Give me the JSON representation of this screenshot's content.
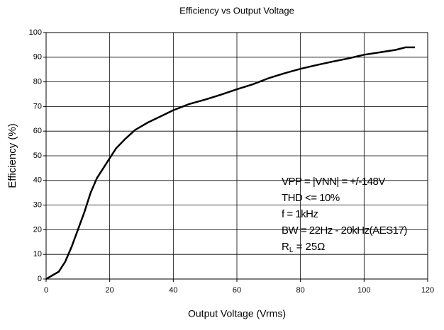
{
  "chart_data": {
    "type": "line",
    "title": "Efficiency vs Output Voltage",
    "x_label": "Output Voltage (Vrms)",
    "y_label": "Efficiency (%)",
    "x": [
      0,
      4,
      6,
      8,
      10,
      12,
      14,
      16,
      18,
      20,
      22,
      25,
      28,
      32,
      36,
      40,
      45,
      50,
      55,
      60,
      65,
      70,
      75,
      80,
      85,
      90,
      95,
      100,
      105,
      110,
      113,
      116
    ],
    "series": [
      {
        "name": "Efficiency",
        "color": "#000000",
        "values": [
          0,
          3,
          7,
          13,
          20,
          27,
          35,
          41,
          45,
          49,
          53,
          57,
          60.5,
          63.5,
          66,
          68.5,
          71,
          72.8,
          74.8,
          77,
          79,
          81.5,
          83.5,
          85.3,
          86.8,
          88.2,
          89.5,
          91,
          92,
          93,
          94,
          94
        ]
      }
    ],
    "xlim": [
      0,
      120
    ],
    "xticks": [
      0,
      20,
      40,
      60,
      80,
      100,
      120
    ],
    "ylim": [
      0,
      100
    ],
    "yticks": [
      0,
      10,
      20,
      30,
      40,
      50,
      60,
      70,
      80,
      90,
      100
    ],
    "grid": true,
    "annotations": [
      "VPP = |VNN| = +/-148V",
      "THD <= 10%",
      "f = 1kHz",
      "BW = 22Hz - 20kHz(AES17)"
    ],
    "load_annotation": {
      "text": "R",
      "subscript": "L",
      "suffix": " = 25Ω"
    }
  }
}
